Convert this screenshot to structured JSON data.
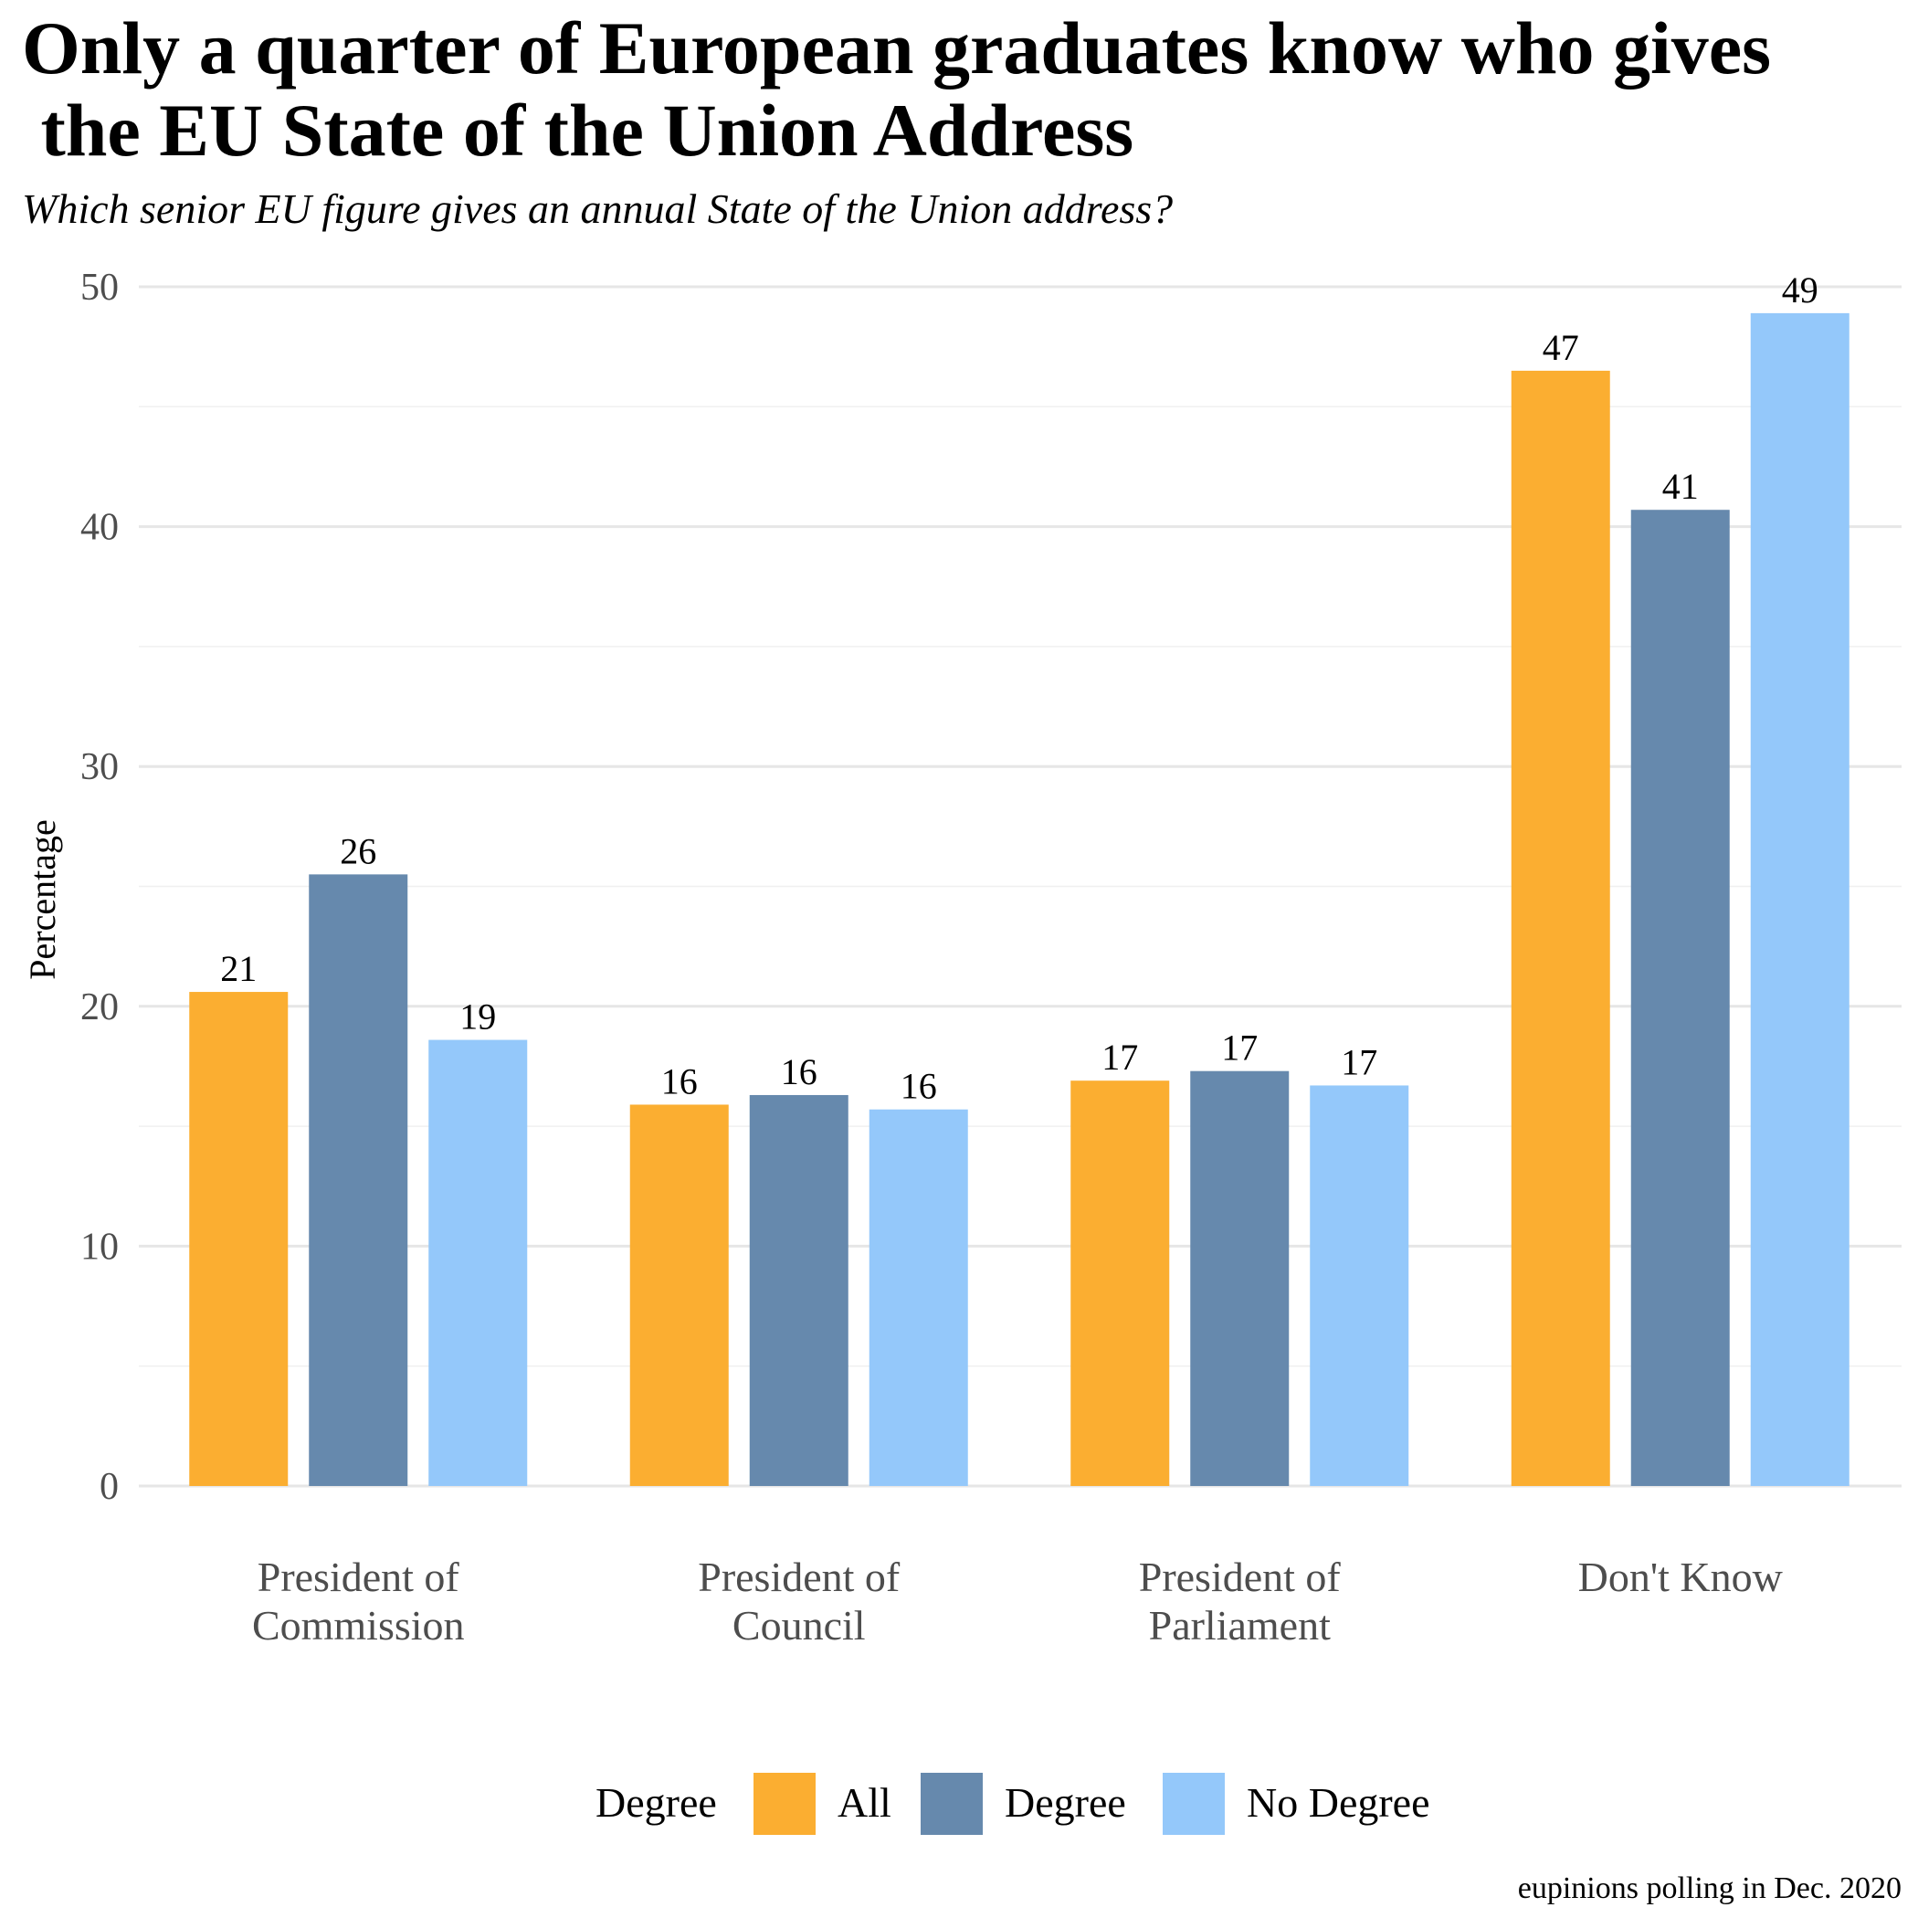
{
  "title_line1": "Only a quarter of European graduates know who gives",
  "title_line2": " the EU State of the Union Address",
  "subtitle": "Which senior EU figure gives an annual State of the Union address?",
  "caption": "eupinions polling in Dec. 2020",
  "legend": {
    "title": "Degree"
  },
  "chart_data": {
    "type": "bar",
    "ylabel": "Percentage",
    "xlabel": "",
    "ylim": [
      0,
      50
    ],
    "yticks": [
      0,
      10,
      20,
      30,
      40,
      50
    ],
    "grid": true,
    "legend_position": "bottom",
    "categories": [
      [
        "President of",
        "Commission"
      ],
      [
        "President of",
        "Council"
      ],
      [
        "President of",
        "Parliament"
      ],
      [
        "Don't Know"
      ]
    ],
    "series": [
      {
        "name": "All",
        "color": "#FBAE31",
        "values": [
          20.6,
          15.9,
          16.9,
          46.5
        ],
        "labels": [
          "21",
          "16",
          "17",
          "47"
        ]
      },
      {
        "name": "Degree",
        "color": "#6689AD",
        "values": [
          25.5,
          16.3,
          17.3,
          40.7
        ],
        "labels": [
          "26",
          "16",
          "17",
          "41"
        ]
      },
      {
        "name": "No Degree",
        "color": "#94C8FA",
        "values": [
          18.6,
          15.7,
          16.7,
          48.9
        ],
        "labels": [
          "19",
          "16",
          "17",
          "49"
        ]
      }
    ]
  }
}
